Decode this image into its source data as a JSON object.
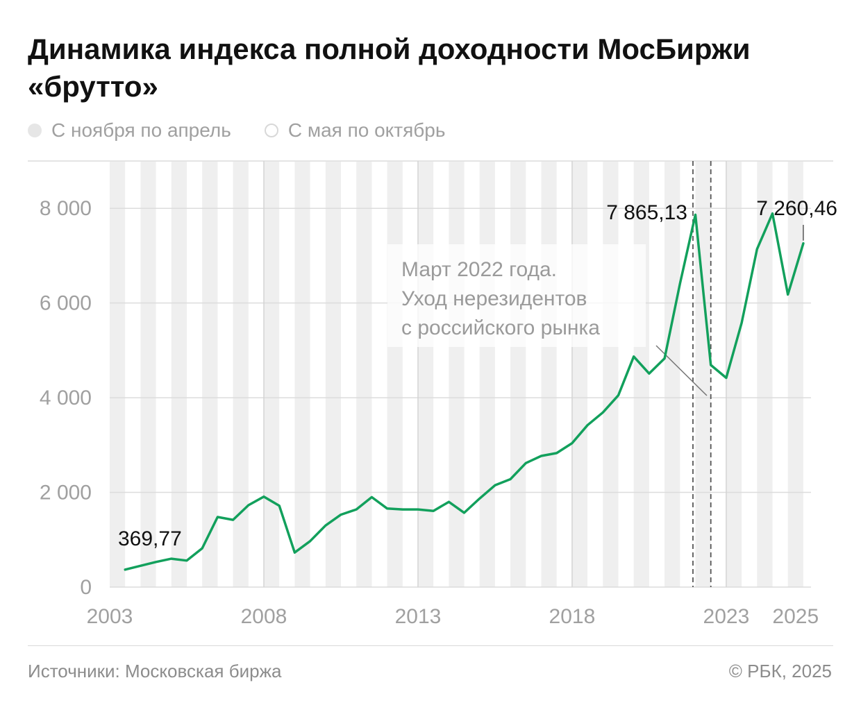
{
  "header": {
    "title": "Динамика индекса полной доходности МосБиржи «брутто»"
  },
  "legend": {
    "winter_label": "С ноября по апрель",
    "summer_label": "С мая по октябрь"
  },
  "footer": {
    "source": "Источники: Московская биржа",
    "copyright": "© РБК, 2025"
  },
  "colors": {
    "line": "#12a05c",
    "band": "#efefef",
    "grid": "#dcdcdc",
    "axis_text": "#a0a0a0",
    "annotation": "#111111"
  },
  "chart_data": {
    "type": "line",
    "title": "Динамика индекса полной доходности МосБиржи «брутто»",
    "xlabel": "",
    "ylabel": "",
    "xlim": [
      2003.0,
      2025.75
    ],
    "ylim": [
      0,
      9000
    ],
    "y_ticks": [
      0,
      2000,
      4000,
      6000,
      8000
    ],
    "y_tick_labels": [
      "0",
      "2 000",
      "4 000",
      "6 000",
      "8 000"
    ],
    "x_ticks": [
      2003,
      2008,
      2013,
      2018,
      2023,
      2025
    ],
    "x_tick_labels": [
      "2003",
      "2008",
      "2013",
      "2018",
      "2023",
      "2025"
    ],
    "x_tick_positions": [
      2003.0,
      2008.0,
      2013.0,
      2018.0,
      2023.0,
      2025.25
    ],
    "grid": true,
    "legend_position": "top-left",
    "shading": "alternating half-year periods: November–April / May–October",
    "series": [
      {
        "points": [
          [
            2003.5,
            370
          ],
          [
            2004.0,
            450
          ],
          [
            2004.5,
            530
          ],
          [
            2005.0,
            600
          ],
          [
            2005.5,
            560
          ],
          [
            2006.0,
            820
          ],
          [
            2006.5,
            1480
          ],
          [
            2007.0,
            1420
          ],
          [
            2007.5,
            1730
          ],
          [
            2008.0,
            1910
          ],
          [
            2008.5,
            1720
          ],
          [
            2009.0,
            730
          ],
          [
            2009.5,
            970
          ],
          [
            2010.0,
            1300
          ],
          [
            2010.5,
            1530
          ],
          [
            2011.0,
            1640
          ],
          [
            2011.5,
            1900
          ],
          [
            2012.0,
            1660
          ],
          [
            2012.5,
            1640
          ],
          [
            2013.0,
            1640
          ],
          [
            2013.5,
            1610
          ],
          [
            2014.0,
            1800
          ],
          [
            2014.5,
            1570
          ],
          [
            2015.0,
            1870
          ],
          [
            2015.5,
            2150
          ],
          [
            2016.0,
            2280
          ],
          [
            2016.5,
            2620
          ],
          [
            2017.0,
            2770
          ],
          [
            2017.5,
            2830
          ],
          [
            2018.0,
            3040
          ],
          [
            2018.5,
            3420
          ],
          [
            2019.0,
            3690
          ],
          [
            2019.5,
            4050
          ],
          [
            2020.0,
            4870
          ],
          [
            2020.5,
            4510
          ],
          [
            2021.0,
            4830
          ],
          [
            2021.5,
            6410
          ],
          [
            2022.0,
            7865.13
          ],
          [
            2022.5,
            4690
          ],
          [
            2023.0,
            4420
          ],
          [
            2023.5,
            5580
          ],
          [
            2024.0,
            7140
          ],
          [
            2024.5,
            7890
          ],
          [
            2025.0,
            6180
          ],
          [
            2025.5,
            7260.46
          ]
        ]
      }
    ],
    "annotations": [
      {
        "x": 2003.5,
        "y": 369.77,
        "text": "369,77"
      },
      {
        "x": 2022.0,
        "y": 7865.13,
        "text": "7 865,13"
      },
      {
        "x": 2025.5,
        "y": 7260.46,
        "text": "7 260,46"
      }
    ],
    "event_markers": [
      2021.92,
      2022.5
    ],
    "event_note": [
      "Март 2022 года.",
      "Уход нерезидентов",
      "с российского рынка"
    ]
  }
}
